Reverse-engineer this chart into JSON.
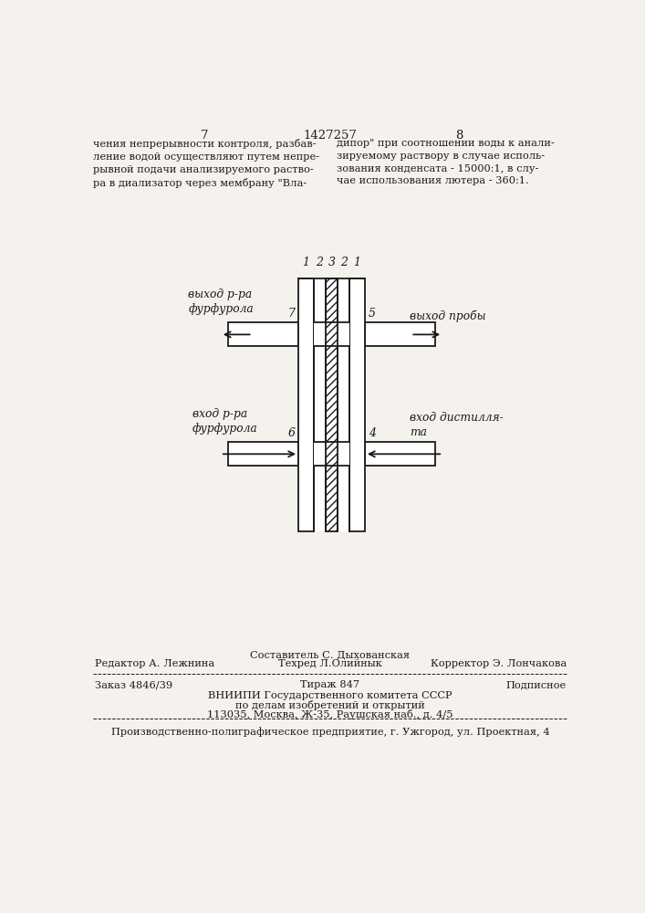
{
  "page_numbers": [
    "7",
    "1427257",
    "8"
  ],
  "left_text": "чения непрерывности контроля, разбав-\nление водой осуществляют путем непре-\nрывной подачи анализируемого раство-\nра в диализатор через мембрану \"Вла-",
  "right_text": "дипор\" при соотношении воды к анали-\nзируемому раствору в случае исполь-\nзования конденсата - 15000:1, в слу-\nчае использования лютера - 360:1.",
  "label_top": [
    "1",
    "2",
    "3",
    "2",
    "1"
  ],
  "label_7": "7",
  "label_5": "5",
  "label_6": "6",
  "label_4": "4",
  "text_vyhod_ra": "выход р-ра\nфурфурола",
  "text_vhod_ra": "вход р-ра\nфурфурола",
  "text_vyhod_proby": "выход пробы",
  "text_vhod_distillata": "вход дистилля-\nта",
  "footer_compiler": "Составитель С. Дыхованская",
  "footer_editor": "Редактор А. Лежнина",
  "footer_techred": "Техред Л.Олийнык",
  "footer_corrector": "Корректор Э. Лончакова",
  "footer_order": "Заказ 4846/39",
  "footer_tirazh": "Тираж 847",
  "footer_podpisnoe": "Подписное",
  "footer_vniiipi": "ВНИИПИ Государственного комитета СССР",
  "footer_po_delam": "по делам изобретений и открытий",
  "footer_address": "113035, Москва, Ж-35, Раушская наб., д. 4/5",
  "footer_factory": "Производственно-полиграфическое предприятие, г. Ужгород, ул. Проектная, 4",
  "bg_color": "#f5f2ed",
  "line_color": "#1a1a1a"
}
